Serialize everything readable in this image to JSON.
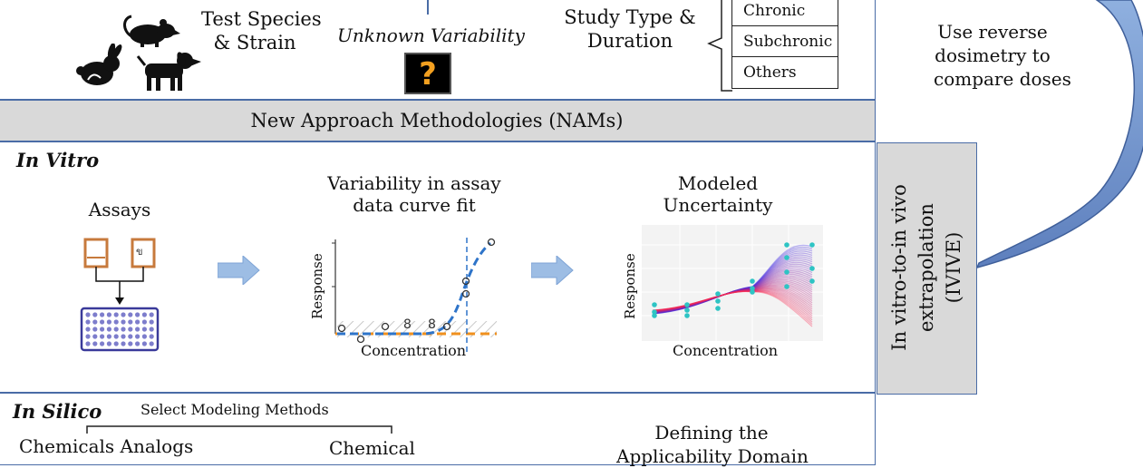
{
  "top": {
    "species_label_line1": "Test Species",
    "species_label_line2": "& Strain",
    "unknown_variability": "Unknown Variability",
    "question_mark": "?",
    "study_type_line1": "Study Type &",
    "study_type_line2": "Duration",
    "study_types": [
      "Chronic",
      "Subchronic",
      "Others"
    ]
  },
  "right_panel": {
    "reverse_dosimetry_line1": "Use reverse",
    "reverse_dosimetry_line2": "dosimetry to",
    "reverse_dosimetry_line3": "compare doses",
    "ivive_line1": "In vitro-to-in vivo",
    "ivive_line2": "extrapolation",
    "ivive_line3": "(IVIVE)"
  },
  "nams_banner": "New Approach Methodologies (NAMs)",
  "in_vitro": {
    "title": "In Vitro",
    "assays_label": "Assays",
    "variability_line1": "Variability in assay",
    "variability_line2": "data curve fit",
    "modeled_line1": "Modeled",
    "modeled_line2": "Uncertainty",
    "curve_fit_plot": {
      "xlabel": "Concentration",
      "ylabel": "Response",
      "marker": "8"
    },
    "modeled_plot": {
      "xlabel": "Concentration",
      "ylabel": "Response"
    }
  },
  "in_silico": {
    "title": "In Silico",
    "select_methods": "Select Modeling Methods",
    "chemicals_analogs": "Chemicals Analogs",
    "chemical": "Chemical",
    "defining_line1": "Defining the",
    "defining_line2": "Applicability Domain"
  },
  "colors": {
    "border": "#4a6ca6",
    "banner_bg": "#d9d9d9",
    "arrow_blue": "#9dbde4",
    "curve_blue": "#2e74c9",
    "baseline_orange": "#f0901e",
    "plate_purple": "#3a3a9a",
    "well_orange": "#c77a3c"
  }
}
